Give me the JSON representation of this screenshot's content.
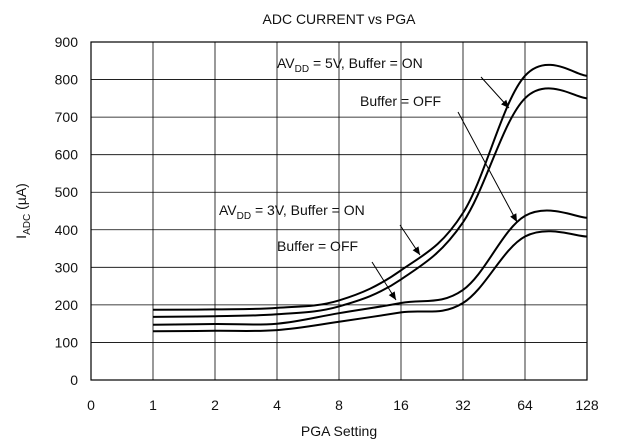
{
  "chart_data": {
    "type": "line",
    "title": "ADC CURRENT vs PGA",
    "xlabel": "PGA Setting",
    "ylabel": {
      "main": "I",
      "sub": "ADC",
      "unit": " (µA)"
    },
    "x_ticks": [
      "0",
      "1",
      "2",
      "4",
      "8",
      "16",
      "32",
      "64",
      "128"
    ],
    "y_ticks": [
      "0",
      "100",
      "200",
      "300",
      "400",
      "500",
      "600",
      "700",
      "800",
      "900"
    ],
    "ylim": [
      0,
      900
    ],
    "grid": true,
    "series": [
      {
        "name": "AVDD = 5V, Buffer = ON",
        "x": [
          "1",
          "2",
          "4",
          "8",
          "16",
          "32",
          "64",
          "128"
        ],
        "y": [
          187,
          188,
          192,
          212,
          292,
          445,
          810,
          810
        ]
      },
      {
        "name": "AVDD = 5V, Buffer = OFF",
        "x": [
          "1",
          "2",
          "4",
          "8",
          "16",
          "32",
          "64",
          "128"
        ],
        "y": [
          168,
          170,
          175,
          196,
          268,
          420,
          750,
          750
        ]
      },
      {
        "name": "AVDD = 3V, Buffer = ON",
        "x": [
          "1",
          "2",
          "4",
          "8",
          "16",
          "32",
          "64",
          "128"
        ],
        "y": [
          147,
          149,
          150,
          178,
          205,
          240,
          437,
          432
        ]
      },
      {
        "name": "AVDD = 3V, Buffer = OFF",
        "x": [
          "1",
          "2",
          "4",
          "8",
          "16",
          "32",
          "64",
          "128"
        ],
        "y": [
          130,
          131,
          133,
          155,
          180,
          205,
          382,
          382
        ]
      }
    ],
    "annotations": [
      {
        "pre": "AV",
        "sub": "DD",
        "post": " = 5V, Buffer = ON"
      },
      {
        "pre": "Buffer = OFF",
        "sub": "",
        "post": ""
      },
      {
        "pre": "AV",
        "sub": "DD",
        "post": " = 3V, Buffer = ON"
      },
      {
        "pre": "Buffer = OFF",
        "sub": "",
        "post": ""
      }
    ]
  }
}
